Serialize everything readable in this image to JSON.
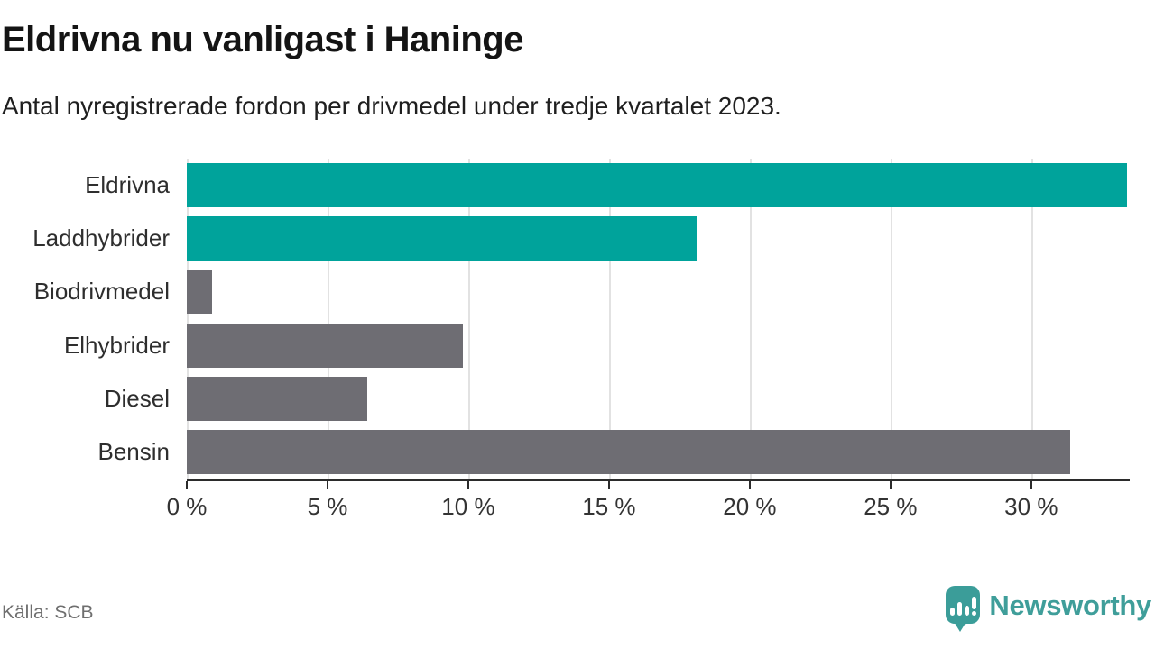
{
  "title": "Eldrivna nu vanligast i Haninge",
  "subtitle": "Antal nyregistrerade fordon per drivmedel under tredje kvartalet 2023.",
  "source": "Källa: SCB",
  "brand": {
    "name": "Newsworthy",
    "icon": "newsworthy-speech-bubble-barchart-icon",
    "color": "#3f9e9a"
  },
  "colors": {
    "highlight_teal": "#00a39b",
    "neutral_gray": "#6e6d73",
    "gridline": "#e2e2e2",
    "axis": "#2b2b2b",
    "title_text": "#141414",
    "body_text": "#2e2e2e",
    "source_text": "#6f6f6f"
  },
  "chart_data": {
    "type": "bar",
    "orientation": "horizontal",
    "title": "Eldrivna nu vanligast i Haninge",
    "subtitle": "Antal nyregistrerade fordon per drivmedel under tredje kvartalet 2023.",
    "categories": [
      "Eldrivna",
      "Laddhybrider",
      "Biodrivmedel",
      "Elhybrider",
      "Diesel",
      "Bensin"
    ],
    "values": [
      33.4,
      18.1,
      0.9,
      9.8,
      6.4,
      31.4
    ],
    "unit": "%",
    "bar_colors": [
      "#00a39b",
      "#00a39b",
      "#6e6d73",
      "#6e6d73",
      "#6e6d73",
      "#6e6d73"
    ],
    "xlim": [
      0,
      33.5
    ],
    "xticks": [
      {
        "value": 0,
        "label": "0 %"
      },
      {
        "value": 5,
        "label": "5 %"
      },
      {
        "value": 10,
        "label": "10 %"
      },
      {
        "value": 15,
        "label": "15 %"
      },
      {
        "value": 20,
        "label": "20 %"
      },
      {
        "value": 25,
        "label": "25 %"
      },
      {
        "value": 30,
        "label": "30 %"
      }
    ],
    "grid": true,
    "legend": false
  }
}
